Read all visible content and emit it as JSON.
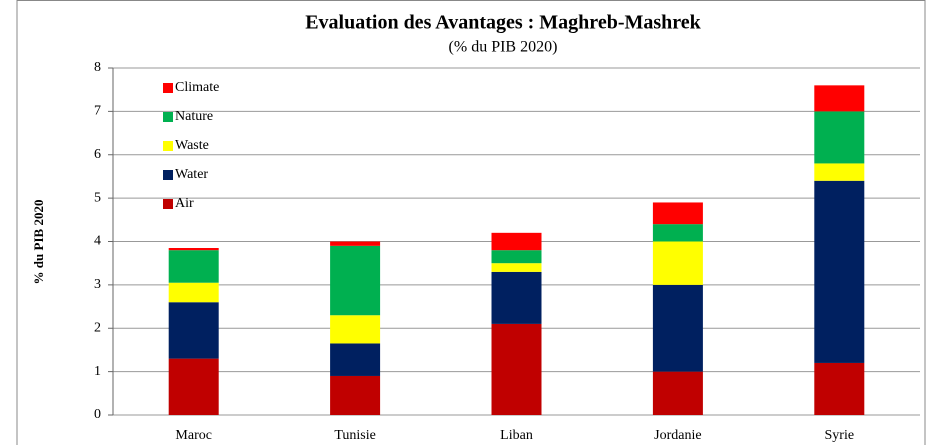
{
  "chart_data": {
    "type": "stacked_bar",
    "title": "Evaluation des Avantages : Maghreb-Mashrek",
    "subtitle": "(% du PIB 2020)",
    "y_label": "% du PIB 2020",
    "categories": [
      "Maroc",
      "Tunisie",
      "Liban",
      "Jordanie",
      "Syrie"
    ],
    "series": [
      {
        "name": "Air",
        "color": "#c00000",
        "values": [
          1.3,
          0.9,
          2.1,
          1.0,
          1.2
        ]
      },
      {
        "name": "Water",
        "color": "#002060",
        "values": [
          1.3,
          0.75,
          1.2,
          2.0,
          4.2
        ]
      },
      {
        "name": "Waste",
        "color": "#ffff00",
        "values": [
          0.45,
          0.65,
          0.2,
          1.0,
          0.4
        ]
      },
      {
        "name": "Nature",
        "color": "#00b050",
        "values": [
          0.75,
          1.6,
          0.3,
          0.4,
          1.2
        ]
      },
      {
        "name": "Climate",
        "color": "#ff0000",
        "values": [
          0.05,
          0.1,
          0.4,
          0.5,
          0.6
        ]
      }
    ],
    "ylim": [
      0,
      8
    ],
    "yticks": [
      0,
      1,
      2,
      3,
      4,
      5,
      6,
      7,
      8
    ],
    "grid": true,
    "legend": "top-left"
  }
}
